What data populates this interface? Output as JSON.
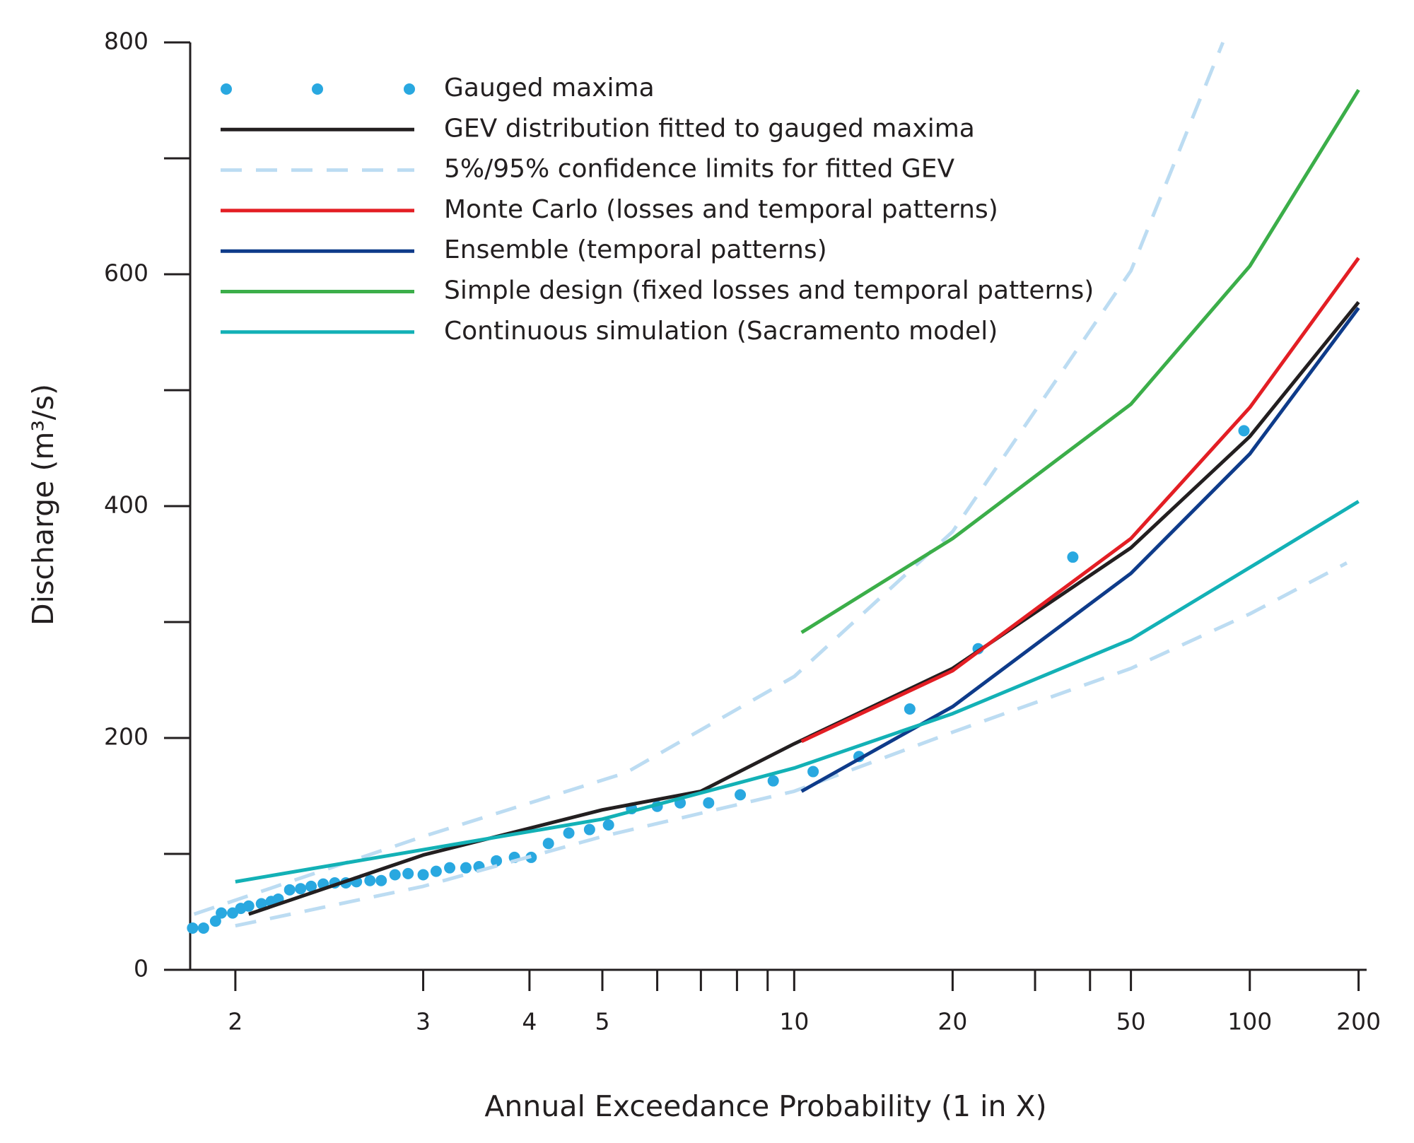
{
  "chart_data": {
    "type": "line",
    "x_label": "Annual Exceedance Probability (1 in X)",
    "y_label": "Discharge (m³/s)",
    "xscale": "normal-probability",
    "xlim": [
      1.77,
      211
    ],
    "xticks": [
      2,
      3,
      4,
      5,
      10,
      20,
      50,
      100,
      200
    ],
    "xminorticks": [
      6,
      7,
      8,
      9,
      30,
      40
    ],
    "ylim": [
      0,
      800
    ],
    "yticks": [
      0,
      200,
      400,
      600,
      800
    ],
    "yminorticks": [
      100,
      300,
      500,
      700
    ],
    "legend": "upper-left",
    "series": [
      {
        "name": "Gauged maxima",
        "style": "markers",
        "color": "#29a8e0",
        "segments": [
          {
            "x": [
              1.855,
              1.89,
              1.93,
              1.95,
              1.99,
              2.02,
              2.05,
              2.1,
              2.14,
              2.17,
              2.22,
              2.27,
              2.32,
              2.38,
              2.44,
              2.5,
              2.56,
              2.64,
              2.71,
              2.8,
              2.89,
              3.0,
              3.1,
              3.21,
              3.35,
              3.47,
              3.64,
              3.83,
              4.02,
              4.23,
              4.5,
              4.8,
              5.1,
              5.5,
              6.0,
              6.5,
              7.2,
              8.1,
              9.2,
              10.8,
              13.1,
              16.4,
              22.6,
              36.5,
              96.5
            ],
            "values": [
              36,
              36,
              42,
              49,
              49,
              53,
              55,
              57,
              59,
              61,
              69,
              70,
              72,
              74,
              75,
              75,
              76,
              77,
              77,
              82,
              83,
              82,
              85,
              88,
              88,
              89,
              94,
              97,
              97,
              109,
              118,
              121,
              125,
              139,
              141,
              144,
              144,
              151,
              163,
              171,
              184,
              225,
              277,
              356,
              465
            ]
          }
        ]
      },
      {
        "name": "GEV distribution fitted to gauged maxima",
        "style": "solid",
        "color": "#231f20",
        "segments": [
          {
            "x": [
              2.05,
              3,
              5,
              7,
              10,
              20,
              50,
              100,
              200
            ],
            "values": [
              48,
              99,
              138,
              154,
              195,
              260,
              364,
              460,
              576
            ]
          }
        ]
      },
      {
        "name": "5%/95% confidence limits for fitted GEV",
        "style": "dashed",
        "color": "#bcdcf2",
        "segments": [
          {
            "x": [
              1.86,
              3,
              5.4,
              10,
              20,
              50,
              85
            ],
            "values": [
              48,
              115,
              170,
              253,
              378,
              603,
              800
            ]
          },
          {
            "x": [
              2,
              3,
              5,
              10,
              20,
              50,
              100,
              185
            ],
            "values": [
              38,
              72,
              115,
              154,
              205,
              260,
              307,
              351
            ]
          }
        ]
      },
      {
        "name": "Monte Carlo (losses and temporal patterns)",
        "style": "solid",
        "color": "#e31e24",
        "segments": [
          {
            "x": [
              10.3,
              20,
              50,
              100,
              200
            ],
            "values": [
              197,
              258,
              372,
              485,
              614
            ]
          }
        ]
      },
      {
        "name": "Ensemble (temporal patterns)",
        "style": "solid",
        "color": "#0e3b8a",
        "segments": [
          {
            "x": [
              10.3,
              20,
              50,
              100,
              200
            ],
            "values": [
              154,
              227,
              342,
              445,
              571
            ]
          }
        ]
      },
      {
        "name": "Simple design (fixed losses and temporal patterns)",
        "style": "solid",
        "color": "#3bae49",
        "segments": [
          {
            "x": [
              10.3,
              20,
              50,
              100,
              200
            ],
            "values": [
              291,
              372,
              488,
              607,
              759
            ]
          }
        ]
      },
      {
        "name": "Continuous simulation (Sacramento model)",
        "style": "solid",
        "color": "#13b1b6",
        "segments": [
          {
            "x": [
              2,
              5,
              10,
              20,
              50,
              100,
              200
            ],
            "values": [
              76,
              130,
              174,
              221,
              285,
              347,
              404
            ]
          }
        ]
      }
    ]
  }
}
